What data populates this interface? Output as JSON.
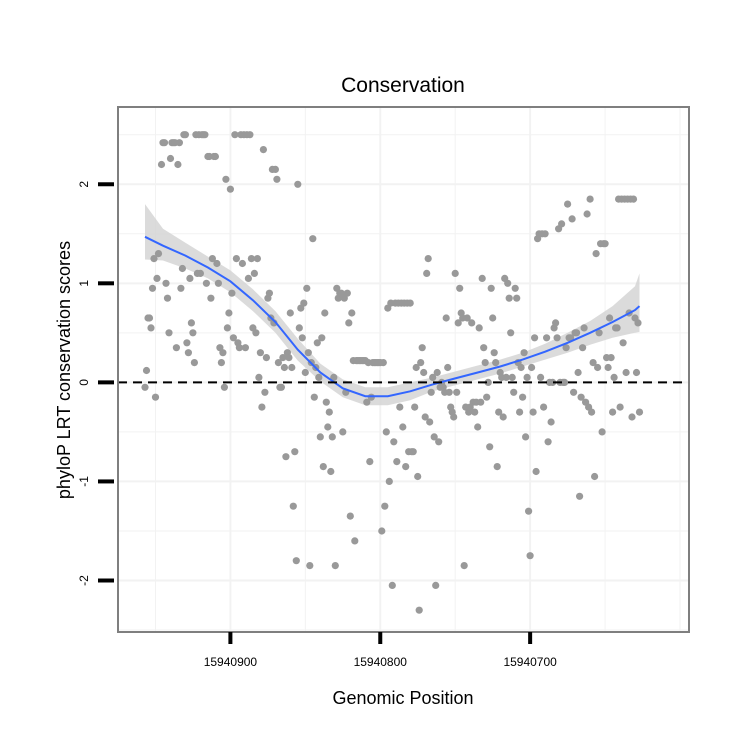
{
  "chart_data": {
    "type": "scatter",
    "title": "Conservation",
    "xlabel": "Genomic Position",
    "ylabel": "phyloP LRT conservation scores",
    "x_reversed": true,
    "xlim": [
      15940975,
      15940594
    ],
    "ylim": [
      -2.52,
      2.78
    ],
    "x_ticks": [
      15940900,
      15940800,
      15940700
    ],
    "x_tick_labels": [
      "15940900",
      "15940800",
      "15940700"
    ],
    "y_ticks": [
      -2,
      -1,
      0,
      1,
      2
    ],
    "y_tick_labels": [
      "-2",
      "-1",
      "0",
      "1",
      "2"
    ],
    "grid": true,
    "reference_line": {
      "y": 0,
      "style": "dashed"
    },
    "colors": {
      "points": "#999999",
      "smooth_line": "#3366ff",
      "ribbon": "#d5d5d5",
      "panel_border": "#7f7f7f",
      "grid": "#f2f2f2"
    },
    "points": [
      [
        15940957,
        -0.05
      ],
      [
        15940956,
        0.12
      ],
      [
        15940955,
        0.65
      ],
      [
        15940954,
        0.65
      ],
      [
        15940953,
        0.55
      ],
      [
        15940952,
        0.95
      ],
      [
        15940951,
        1.25
      ],
      [
        15940950,
        -0.15
      ],
      [
        15940949,
        1.05
      ],
      [
        15940948,
        1.3
      ],
      [
        15940946,
        2.2
      ],
      [
        15940945,
        2.42
      ],
      [
        15940944,
        2.42
      ],
      [
        15940943,
        1.0
      ],
      [
        15940942,
        0.85
      ],
      [
        15940941,
        0.5
      ],
      [
        15940940,
        2.26
      ],
      [
        15940939,
        2.42
      ],
      [
        15940938,
        2.42
      ],
      [
        15940937,
        2.42
      ],
      [
        15940936,
        0.35
      ],
      [
        15940935,
        2.2
      ],
      [
        15940934,
        2.42
      ],
      [
        15940933,
        0.95
      ],
      [
        15940932,
        1.15
      ],
      [
        15940931,
        2.5
      ],
      [
        15940930,
        2.5
      ],
      [
        15940929,
        0.4
      ],
      [
        15940928,
        0.3
      ],
      [
        15940927,
        1.05
      ],
      [
        15940926,
        0.6
      ],
      [
        15940925,
        0.5
      ],
      [
        15940924,
        0.2
      ],
      [
        15940923,
        2.5
      ],
      [
        15940922,
        1.1
      ],
      [
        15940921,
        2.5
      ],
      [
        15940920,
        1.1
      ],
      [
        15940919,
        2.5
      ],
      [
        15940918,
        2.5
      ],
      [
        15940917,
        2.5
      ],
      [
        15940916,
        1.0
      ],
      [
        15940915,
        2.28
      ],
      [
        15940914,
        2.28
      ],
      [
        15940913,
        0.85
      ],
      [
        15940912,
        1.25
      ],
      [
        15940911,
        2.28
      ],
      [
        15940910,
        2.28
      ],
      [
        15940909,
        1.2
      ],
      [
        15940908,
        1.0
      ],
      [
        15940907,
        0.35
      ],
      [
        15940906,
        0.2
      ],
      [
        15940905,
        0.3
      ],
      [
        15940904,
        -0.05
      ],
      [
        15940903,
        2.05
      ],
      [
        15940902,
        0.55
      ],
      [
        15940901,
        0.7
      ],
      [
        15940900,
        1.95
      ],
      [
        15940899,
        0.9
      ],
      [
        15940898,
        0.45
      ],
      [
        15940897,
        2.5
      ],
      [
        15940896,
        1.25
      ],
      [
        15940895,
        0.4
      ],
      [
        15940894,
        0.35
      ],
      [
        15940893,
        2.5
      ],
      [
        15940892,
        1.2
      ],
      [
        15940891,
        2.5
      ],
      [
        15940890,
        0.35
      ],
      [
        15940889,
        2.5
      ],
      [
        15940888,
        1.05
      ],
      [
        15940887,
        2.5
      ],
      [
        15940886,
        1.25
      ],
      [
        15940885,
        0.55
      ],
      [
        15940884,
        1.1
      ],
      [
        15940883,
        0.5
      ],
      [
        15940882,
        1.25
      ],
      [
        15940881,
        0.05
      ],
      [
        15940880,
        0.3
      ],
      [
        15940879,
        -0.25
      ],
      [
        15940878,
        2.35
      ],
      [
        15940877,
        -0.1
      ],
      [
        15940876,
        0.25
      ],
      [
        15940875,
        0.85
      ],
      [
        15940874,
        0.9
      ],
      [
        15940873,
        0.65
      ],
      [
        15940872,
        2.15
      ],
      [
        15940871,
        0.6
      ],
      [
        15940870,
        2.15
      ],
      [
        15940869,
        2.05
      ],
      [
        15940868,
        0.2
      ],
      [
        15940867,
        -0.05
      ],
      [
        15940866,
        -0.05
      ],
      [
        15940865,
        0.25
      ],
      [
        15940864,
        0.15
      ],
      [
        15940863,
        -0.75
      ],
      [
        15940862,
        0.3
      ],
      [
        15940861,
        0.25
      ],
      [
        15940860,
        0.7
      ],
      [
        15940859,
        0.15
      ],
      [
        15940858,
        -1.25
      ],
      [
        15940857,
        -0.7
      ],
      [
        15940856,
        -1.8
      ],
      [
        15940855,
        2.0
      ],
      [
        15940854,
        0.55
      ],
      [
        15940853,
        0.75
      ],
      [
        15940852,
        0.45
      ],
      [
        15940851,
        0.8
      ],
      [
        15940850,
        0.1
      ],
      [
        15940849,
        0.95
      ],
      [
        15940848,
        0.3
      ],
      [
        15940847,
        -1.85
      ],
      [
        15940846,
        0.2
      ],
      [
        15940845,
        1.45
      ],
      [
        15940844,
        -0.15
      ],
      [
        15940843,
        0.15
      ],
      [
        15940842,
        0.4
      ],
      [
        15940841,
        0.05
      ],
      [
        15940840,
        -0.55
      ],
      [
        15940839,
        0.45
      ],
      [
        15940838,
        -0.85
      ],
      [
        15940837,
        0.7
      ],
      [
        15940836,
        -0.2
      ],
      [
        15940835,
        -0.45
      ],
      [
        15940834,
        -0.3
      ],
      [
        15940833,
        -0.9
      ],
      [
        15940832,
        -0.55
      ],
      [
        15940831,
        0.05
      ],
      [
        15940830,
        -1.85
      ],
      [
        15940829,
        0.95
      ],
      [
        15940828,
        0.85
      ],
      [
        15940827,
        0.9
      ],
      [
        15940826,
        0.9
      ],
      [
        15940825,
        -0.5
      ],
      [
        15940824,
        0.85
      ],
      [
        15940823,
        -0.1
      ],
      [
        15940822,
        0.9
      ],
      [
        15940821,
        0.6
      ],
      [
        15940820,
        -1.35
      ],
      [
        15940819,
        0.7
      ],
      [
        15940818,
        0.22
      ],
      [
        15940817,
        -1.6
      ],
      [
        15940816,
        0.22
      ],
      [
        15940815,
        0.22
      ],
      [
        15940814,
        0.22
      ],
      [
        15940813,
        0.22
      ],
      [
        15940812,
        0.22
      ],
      [
        15940811,
        0.22
      ],
      [
        15940810,
        0.22
      ],
      [
        15940809,
        -0.2
      ],
      [
        15940808,
        0.2
      ],
      [
        15940807,
        -0.8
      ],
      [
        15940806,
        -0.15
      ],
      [
        15940805,
        0.2
      ],
      [
        15940804,
        0.2
      ],
      [
        15940803,
        0.2
      ],
      [
        15940802,
        0.2
      ],
      [
        15940801,
        0.2
      ],
      [
        15940800,
        0.2
      ],
      [
        15940799,
        -1.5
      ],
      [
        15940798,
        0.2
      ],
      [
        15940797,
        -1.25
      ],
      [
        15940796,
        -0.5
      ],
      [
        15940795,
        0.75
      ],
      [
        15940794,
        -1.0
      ],
      [
        15940793,
        0.8
      ],
      [
        15940792,
        -2.05
      ],
      [
        15940791,
        -0.6
      ],
      [
        15940790,
        0.8
      ],
      [
        15940789,
        -0.8
      ],
      [
        15940788,
        0.8
      ],
      [
        15940787,
        -0.25
      ],
      [
        15940786,
        0.8
      ],
      [
        15940785,
        -0.45
      ],
      [
        15940784,
        0.8
      ],
      [
        15940783,
        -0.85
      ],
      [
        15940782,
        0.8
      ],
      [
        15940781,
        -0.7
      ],
      [
        15940780,
        0.8
      ],
      [
        15940779,
        -0.7
      ],
      [
        15940778,
        -0.7
      ],
      [
        15940777,
        -0.25
      ],
      [
        15940776,
        0.15
      ],
      [
        15940775,
        -0.95
      ],
      [
        15940774,
        -2.3
      ],
      [
        15940773,
        0.2
      ],
      [
        15940772,
        0.35
      ],
      [
        15940771,
        0.1
      ],
      [
        15940770,
        -0.35
      ],
      [
        15940769,
        1.1
      ],
      [
        15940768,
        1.25
      ],
      [
        15940767,
        -0.4
      ],
      [
        15940766,
        -0.1
      ],
      [
        15940765,
        0.05
      ],
      [
        15940764,
        -0.55
      ],
      [
        15940763,
        -2.05
      ],
      [
        15940762,
        0.1
      ],
      [
        15940761,
        -0.6
      ],
      [
        15940760,
        -0.05
      ],
      [
        15940759,
        0.0
      ],
      [
        15940758,
        -0.05
      ],
      [
        15940757,
        -0.1
      ],
      [
        15940756,
        0.65
      ],
      [
        15940755,
        0.15
      ],
      [
        15940754,
        -0.1
      ],
      [
        15940753,
        -0.25
      ],
      [
        15940752,
        -0.3
      ],
      [
        15940751,
        -0.35
      ],
      [
        15940750,
        1.1
      ],
      [
        15940749,
        -0.1
      ],
      [
        15940748,
        0.6
      ],
      [
        15940747,
        0.95
      ],
      [
        15940746,
        0.7
      ],
      [
        15940745,
        0.65
      ],
      [
        15940744,
        -1.85
      ],
      [
        15940743,
        -0.25
      ],
      [
        15940742,
        0.65
      ],
      [
        15940741,
        -0.3
      ],
      [
        15940740,
        -0.25
      ],
      [
        15940739,
        0.6
      ],
      [
        15940738,
        -0.2
      ],
      [
        15940737,
        -0.3
      ],
      [
        15940736,
        -0.2
      ],
      [
        15940735,
        -0.45
      ],
      [
        15940734,
        0.55
      ],
      [
        15940733,
        -0.2
      ],
      [
        15940732,
        1.05
      ],
      [
        15940731,
        0.35
      ],
      [
        15940730,
        0.2
      ],
      [
        15940729,
        -0.15
      ],
      [
        15940728,
        0.0
      ],
      [
        15940727,
        -0.65
      ],
      [
        15940726,
        0.95
      ],
      [
        15940725,
        0.65
      ],
      [
        15940724,
        0.3
      ],
      [
        15940723,
        0.2
      ],
      [
        15940722,
        -0.85
      ],
      [
        15940721,
        -0.3
      ],
      [
        15940720,
        0.1
      ],
      [
        15940719,
        0.05
      ],
      [
        15940718,
        -0.35
      ],
      [
        15940717,
        1.05
      ],
      [
        15940716,
        0.05
      ],
      [
        15940715,
        1.0
      ],
      [
        15940714,
        0.85
      ],
      [
        15940713,
        0.5
      ],
      [
        15940712,
        0.05
      ],
      [
        15940711,
        -0.1
      ],
      [
        15940710,
        0.95
      ],
      [
        15940709,
        0.85
      ],
      [
        15940708,
        0.2
      ],
      [
        15940707,
        -0.3
      ],
      [
        15940706,
        0.15
      ],
      [
        15940705,
        -0.15
      ],
      [
        15940704,
        0.3
      ],
      [
        15940703,
        -0.55
      ],
      [
        15940702,
        0.05
      ],
      [
        15940701,
        -1.3
      ],
      [
        15940700,
        -1.75
      ],
      [
        15940699,
        0.15
      ],
      [
        15940698,
        -0.3
      ],
      [
        15940697,
        0.45
      ],
      [
        15940696,
        -0.9
      ],
      [
        15940695,
        1.45
      ],
      [
        15940694,
        1.5
      ],
      [
        15940693,
        0.05
      ],
      [
        15940692,
        1.5
      ],
      [
        15940691,
        -0.25
      ],
      [
        15940690,
        1.5
      ],
      [
        15940689,
        0.45
      ],
      [
        15940688,
        -0.6
      ],
      [
        15940687,
        0.0
      ],
      [
        15940686,
        -0.4
      ],
      [
        15940685,
        0.0
      ],
      [
        15940684,
        0.55
      ],
      [
        15940683,
        0.6
      ],
      [
        15940682,
        0.45
      ],
      [
        15940681,
        1.55
      ],
      [
        15940680,
        0.0
      ],
      [
        15940679,
        1.6
      ],
      [
        15940678,
        0.0
      ],
      [
        15940677,
        0.0
      ],
      [
        15940676,
        0.35
      ],
      [
        15940675,
        1.8
      ],
      [
        15940674,
        0.45
      ],
      [
        15940673,
        0.45
      ],
      [
        15940672,
        1.65
      ],
      [
        15940671,
        -0.1
      ],
      [
        15940670,
        0.5
      ],
      [
        15940669,
        0.5
      ],
      [
        15940668,
        0.1
      ],
      [
        15940667,
        -1.15
      ],
      [
        15940666,
        -0.15
      ],
      [
        15940665,
        0.35
      ],
      [
        15940664,
        0.55
      ],
      [
        15940663,
        -0.2
      ],
      [
        15940662,
        1.7
      ],
      [
        15940661,
        -0.25
      ],
      [
        15940660,
        1.85
      ],
      [
        15940659,
        -0.3
      ],
      [
        15940658,
        0.2
      ],
      [
        15940657,
        -0.95
      ],
      [
        15940656,
        1.3
      ],
      [
        15940655,
        0.15
      ],
      [
        15940654,
        0.5
      ],
      [
        15940653,
        1.4
      ],
      [
        15940652,
        -0.5
      ],
      [
        15940651,
        1.4
      ],
      [
        15940650,
        1.4
      ],
      [
        15940649,
        0.25
      ],
      [
        15940648,
        0.15
      ],
      [
        15940647,
        0.65
      ],
      [
        15940646,
        0.25
      ],
      [
        15940645,
        -0.3
      ],
      [
        15940644,
        0.05
      ],
      [
        15940643,
        0.55
      ],
      [
        15940642,
        0.55
      ],
      [
        15940641,
        1.85
      ],
      [
        15940640,
        -0.25
      ],
      [
        15940639,
        1.85
      ],
      [
        15940638,
        0.4
      ],
      [
        15940637,
        1.85
      ],
      [
        15940636,
        0.1
      ],
      [
        15940635,
        1.85
      ],
      [
        15940634,
        0.7
      ],
      [
        15940633,
        1.85
      ],
      [
        15940632,
        -0.35
      ],
      [
        15940631,
        1.85
      ],
      [
        15940630,
        0.65
      ],
      [
        15940629,
        0.1
      ],
      [
        15940628,
        0.6
      ],
      [
        15940627,
        -0.3
      ]
    ],
    "smooth_fit": {
      "name": "",
      "x": [
        15940957,
        15940945,
        15940930,
        15940915,
        15940900,
        15940885,
        15940870,
        15940855,
        15940840,
        15940825,
        15940810,
        15940795,
        15940780,
        15940765,
        15940750,
        15940735,
        15940720,
        15940705,
        15940690,
        15940675,
        15940660,
        15940645,
        15940630,
        15940627
      ],
      "y": [
        1.47,
        1.38,
        1.28,
        1.16,
        1.02,
        0.83,
        0.61,
        0.33,
        0.1,
        -0.06,
        -0.14,
        -0.14,
        -0.09,
        -0.02,
        0.04,
        0.1,
        0.16,
        0.23,
        0.31,
        0.4,
        0.5,
        0.61,
        0.73,
        0.77
      ],
      "lower": [
        1.24,
        1.23,
        1.15,
        1.05,
        0.91,
        0.72,
        0.5,
        0.22,
        0.01,
        -0.15,
        -0.23,
        -0.23,
        -0.18,
        -0.09,
        -0.03,
        0.03,
        0.09,
        0.16,
        0.23,
        0.3,
        0.38,
        0.45,
        0.5,
        0.51
      ],
      "upper": [
        1.8,
        1.55,
        1.41,
        1.27,
        1.13,
        0.94,
        0.72,
        0.44,
        0.19,
        0.03,
        -0.05,
        -0.05,
        0.0,
        0.05,
        0.11,
        0.17,
        0.23,
        0.3,
        0.39,
        0.5,
        0.62,
        0.77,
        0.97,
        1.1
      ]
    }
  }
}
